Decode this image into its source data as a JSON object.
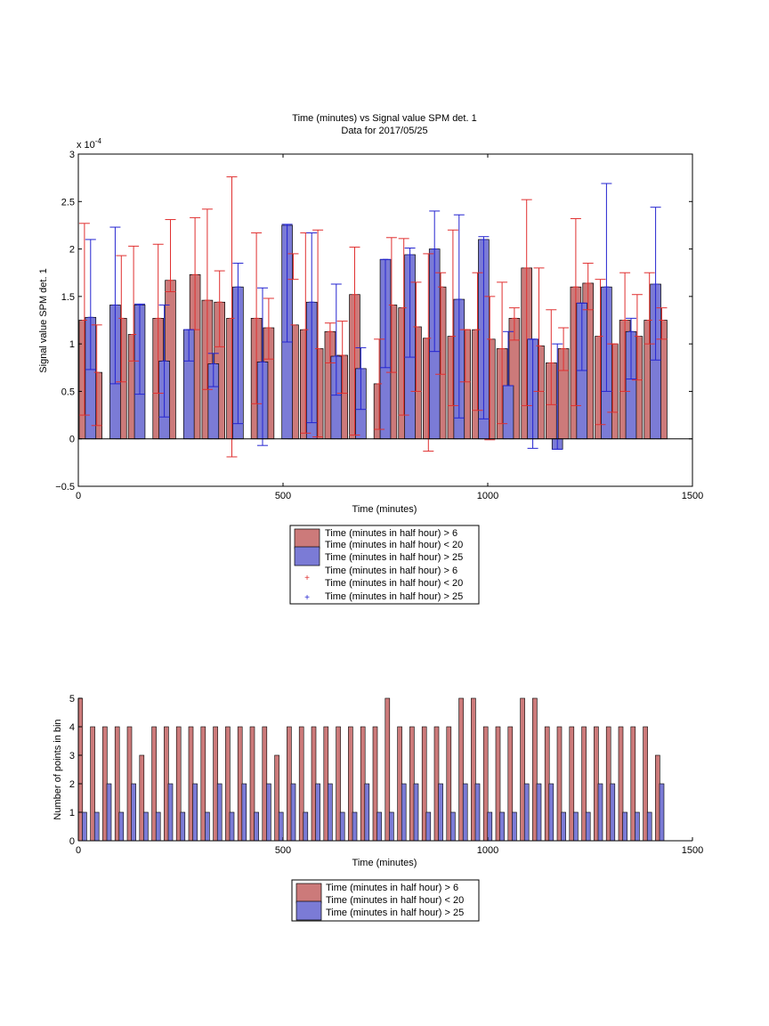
{
  "colors": {
    "red_fill": "#cc7a7a",
    "blue_fill": "#7b7bd6",
    "red_err": "#e03030",
    "blue_err": "#2424d0",
    "axis": "#000000"
  },
  "chart_data": [
    {
      "type": "bar",
      "title": "Time (minutes) vs Signal value SPM det. 1",
      "subtitle": "Data for 2017/05/25",
      "xlabel": "Time (minutes)",
      "ylabel": "Signal value SPM det. 1",
      "exponent_label": "x 10",
      "exponent_power": "-4",
      "xlim": [
        0,
        1500
      ],
      "ylim": [
        -0.5,
        3
      ],
      "xticks": [
        0,
        500,
        1000,
        1500
      ],
      "yticks": [
        -0.5,
        0,
        0.5,
        1,
        1.5,
        2,
        2.5,
        3
      ],
      "ytick_labels": [
        "−0.5",
        "0",
        "0.5",
        "1",
        "1.5",
        "2",
        "2.5",
        "3"
      ],
      "grid": false,
      "legend_position": "below",
      "legend": [
        "Time (minutes in half hour) > 6",
        "Time (minutes in half hour) < 20",
        "Time (minutes in half hour) > 25",
        "Time (minutes in half hour) > 6",
        "Time (minutes in half hour) < 20",
        "Time (minutes in half hour) > 25"
      ],
      "series": [
        {
          "color": "red",
          "x": [
            15,
            45,
            105,
            135,
            195,
            225,
            285,
            315,
            345,
            375,
            435,
            465,
            525,
            555,
            585,
            615,
            645,
            675,
            735,
            765,
            795,
            825,
            855,
            885,
            915,
            945,
            975,
            1005,
            1035,
            1065,
            1095,
            1125,
            1155,
            1185,
            1215,
            1245,
            1275,
            1305,
            1335,
            1365,
            1395,
            1425
          ],
          "values": [
            1.25,
            0.7,
            1.27,
            1.1,
            1.27,
            1.67,
            1.73,
            1.46,
            1.44,
            1.27,
            1.27,
            1.17,
            1.2,
            1.15,
            0.95,
            1.13,
            0.88,
            1.52,
            0.58,
            1.41,
            1.38,
            1.18,
            1.06,
            1.6,
            1.08,
            1.15,
            1.15,
            1.05,
            0.95,
            1.27,
            1.8,
            0.98,
            0.8,
            0.95,
            1.6,
            1.64,
            1.08,
            1.0,
            1.25,
            1.08,
            1.25,
            1.25
          ],
          "err_low": [
            0.25,
            0.14,
            0.6,
            0.82,
            0.48,
            1.55,
            1.15,
            0.52,
            0.97,
            -0.19,
            0.37,
            0.84,
            1.68,
            0.06,
            0.02,
            0.8,
            0.48,
            0.04,
            0.1,
            0.7,
            0.25,
            0.5,
            -0.13,
            0.68,
            0.35,
            0.6,
            0.3,
            -0.01,
            0.16,
            1.04,
            0.35,
            0.5,
            0.36,
            0.72,
            0.35,
            1.36,
            0.15,
            0.28,
            0.5,
            0.62,
            1.0,
            1.05
          ],
          "err_high": [
            2.27,
            1.2,
            1.93,
            2.03,
            2.05,
            2.31,
            2.33,
            2.42,
            1.77,
            2.76,
            2.17,
            1.48,
            1.95,
            2.17,
            2.2,
            1.22,
            1.24,
            2.02,
            1.05,
            2.12,
            2.11,
            1.65,
            1.95,
            1.75,
            2.2,
            1.15,
            1.75,
            1.5,
            1.65,
            1.38,
            2.52,
            1.8,
            1.36,
            1.17,
            2.32,
            1.85,
            1.68,
            1.0,
            1.75,
            1.52,
            1.75,
            1.38
          ]
        },
        {
          "color": "blue",
          "x": [
            30,
            90,
            150,
            210,
            270,
            330,
            390,
            450,
            510,
            570,
            630,
            690,
            750,
            810,
            870,
            930,
            990,
            1050,
            1110,
            1170,
            1230,
            1290,
            1350,
            1410
          ],
          "values": [
            1.28,
            1.41,
            1.41,
            0.82,
            1.15,
            0.79,
            1.6,
            0.81,
            2.25,
            1.44,
            0.87,
            0.74,
            1.89,
            1.94,
            2.0,
            1.47,
            2.1,
            0.56,
            1.05,
            -0.11,
            1.43,
            1.6,
            1.13,
            1.63
          ],
          "err_low": [
            0.73,
            0.58,
            0.47,
            0.23,
            0.82,
            0.55,
            0.16,
            -0.07,
            1.02,
            0.17,
            0.46,
            0.31,
            0.75,
            0.86,
            0.92,
            0.22,
            0.21,
            0.56,
            -0.1,
            -0.11,
            0.72,
            0.5,
            0.63,
            0.83
          ],
          "err_high": [
            2.1,
            2.23,
            1.42,
            1.41,
            1.15,
            0.9,
            1.85,
            1.59,
            2.26,
            2.17,
            1.63,
            0.96,
            1.89,
            2.01,
            2.4,
            2.36,
            2.13,
            1.13,
            1.05,
            1.0,
            1.43,
            2.69,
            1.27,
            2.44
          ]
        }
      ]
    },
    {
      "type": "bar",
      "xlabel": "Time (minutes)",
      "ylabel": "Number of points in bin",
      "xlim": [
        0,
        1500
      ],
      "ylim": [
        0,
        5
      ],
      "xticks": [
        0,
        500,
        1000,
        1500
      ],
      "yticks": [
        0,
        1,
        2,
        3,
        4,
        5
      ],
      "legend_position": "below",
      "legend": [
        "Time (minutes in half hour) > 6",
        "Time (minutes in half hour) < 20",
        "Time (minutes in half hour) > 25"
      ],
      "series": [
        {
          "color": "red",
          "x": [
            5,
            35,
            65,
            95,
            125,
            155,
            185,
            215,
            245,
            275,
            305,
            335,
            365,
            395,
            425,
            455,
            485,
            515,
            545,
            575,
            605,
            635,
            665,
            695,
            725,
            755,
            785,
            815,
            845,
            875,
            905,
            935,
            965,
            995,
            1025,
            1055,
            1085,
            1115,
            1145,
            1175,
            1205,
            1235,
            1265,
            1295,
            1325,
            1355,
            1385,
            1415
          ],
          "values": [
            5,
            4,
            4,
            4,
            4,
            3,
            4,
            4,
            4,
            4,
            4,
            4,
            4,
            4,
            4,
            4,
            3,
            4,
            4,
            4,
            4,
            4,
            4,
            4,
            4,
            5,
            4,
            4,
            4,
            4,
            4,
            5,
            5,
            4,
            4,
            4,
            5,
            5,
            4,
            4,
            4,
            4,
            4,
            4,
            4,
            4,
            4,
            3
          ]
        },
        {
          "color": "blue",
          "x": [
            15,
            45,
            75,
            105,
            135,
            165,
            195,
            225,
            255,
            285,
            315,
            345,
            375,
            405,
            435,
            465,
            495,
            525,
            555,
            585,
            615,
            645,
            675,
            705,
            735,
            765,
            795,
            825,
            855,
            885,
            915,
            945,
            975,
            1005,
            1035,
            1065,
            1095,
            1125,
            1155,
            1185,
            1215,
            1245,
            1275,
            1305,
            1335,
            1365,
            1395,
            1425
          ],
          "values": [
            1,
            1,
            2,
            1,
            2,
            1,
            1,
            2,
            1,
            2,
            1,
            2,
            1,
            2,
            1,
            2,
            1,
            2,
            1,
            2,
            2,
            1,
            1,
            2,
            1,
            1,
            2,
            2,
            1,
            2,
            1,
            2,
            2,
            1,
            1,
            1,
            2,
            2,
            2,
            1,
            1,
            1,
            2,
            2,
            1,
            1,
            1,
            2
          ]
        }
      ]
    }
  ]
}
